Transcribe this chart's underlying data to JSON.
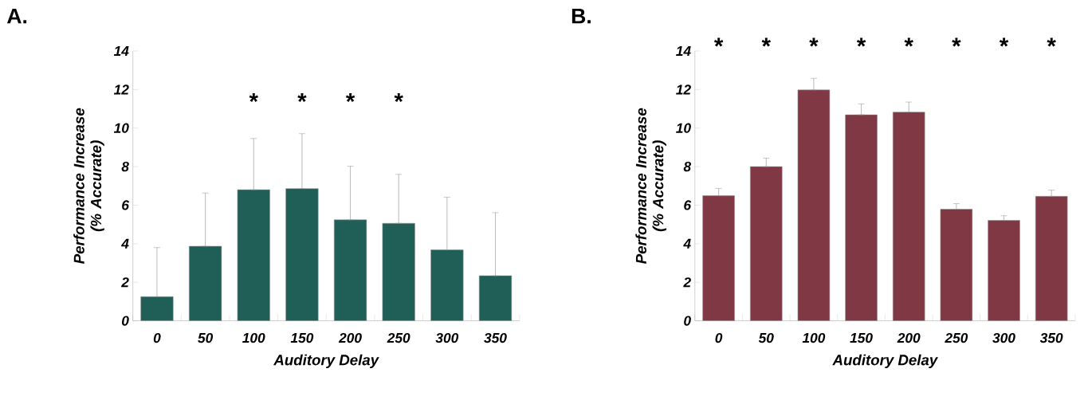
{
  "chart_data": [
    {
      "type": "bar",
      "title": "A.",
      "xlabel": "Auditory Delay",
      "ylabel": "Performance Increase (% Accurate)",
      "categories": [
        "0",
        "50",
        "100",
        "150",
        "200",
        "250",
        "300",
        "350"
      ],
      "values": [
        1.25,
        3.87,
        6.8,
        6.86,
        5.24,
        5.06,
        3.68,
        2.34
      ],
      "errors": [
        [
          1.25,
          3.8
        ],
        [
          3.87,
          6.63
        ],
        [
          6.8,
          9.46
        ],
        [
          6.86,
          9.71
        ],
        [
          5.24,
          8.02
        ],
        [
          5.06,
          7.6
        ],
        [
          3.68,
          6.41
        ],
        [
          2.34,
          5.61
        ]
      ],
      "color": "#1f5f58",
      "ylim": [
        0,
        14
      ],
      "yticks": [
        0,
        2,
        4,
        6,
        8,
        10,
        12,
        14
      ],
      "annotations": [
        "*",
        "*",
        "*",
        "*"
      ]
    },
    {
      "type": "bar",
      "title": "B.",
      "xlabel": "Auditory Delay",
      "ylabel": "Performance Increase (% Accurate)",
      "categories": [
        "0",
        "50",
        "100",
        "150",
        "200",
        "250",
        "300",
        "350"
      ],
      "values": [
        6.49,
        8.0,
        11.98,
        10.69,
        10.83,
        5.79,
        5.21,
        6.46
      ],
      "errors": [
        [
          6.49,
          6.87
        ],
        [
          8.0,
          8.44
        ],
        [
          11.98,
          12.58
        ],
        [
          10.69,
          11.25
        ],
        [
          10.83,
          11.35
        ],
        [
          5.79,
          6.08
        ],
        [
          5.21,
          5.45
        ],
        [
          6.46,
          6.78
        ]
      ],
      "color": "#803845",
      "ylim": [
        0,
        14
      ],
      "yticks": [
        0,
        2,
        4,
        6,
        8,
        10,
        12,
        14
      ],
      "annotations": [
        "*",
        "*",
        "*",
        "*",
        "*",
        "*",
        "*",
        "*"
      ]
    }
  ]
}
